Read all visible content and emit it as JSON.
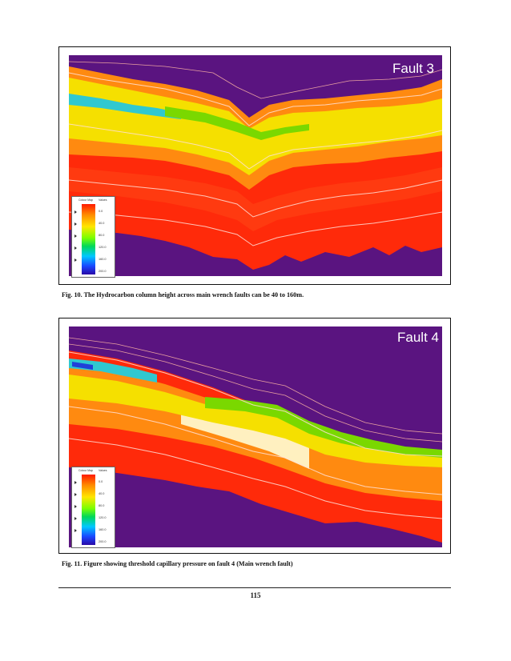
{
  "figures": [
    {
      "label": "Fault 3",
      "caption": "Fig. 10. The Hydrocarbon column height across main wrench faults can be 40 to 160m.",
      "legend": {
        "title": "Colour Map",
        "values_header": "Values",
        "ticks": [
          "0.0",
          "40.0",
          "80.0",
          "120.0",
          "160.0",
          "200.0"
        ]
      }
    },
    {
      "label": "Fault 4",
      "caption": "Fig. 11. Figure showing threshold capillary pressure on fault 4 (Main wrench fault)",
      "legend": {
        "title": "Colour Map",
        "values_header": "Values",
        "ticks": [
          "0.0",
          "40.0",
          "80.0",
          "120.0",
          "160.0",
          "200.0"
        ]
      }
    }
  ],
  "footer": {
    "page_number": "115"
  },
  "colors": {
    "background": "#5a1480",
    "band_red": "#ff2a0a",
    "band_orange": "#ff8a10",
    "band_yellow": "#f5e000",
    "band_green": "#7ad800",
    "band_cyan": "#30c8d0"
  }
}
